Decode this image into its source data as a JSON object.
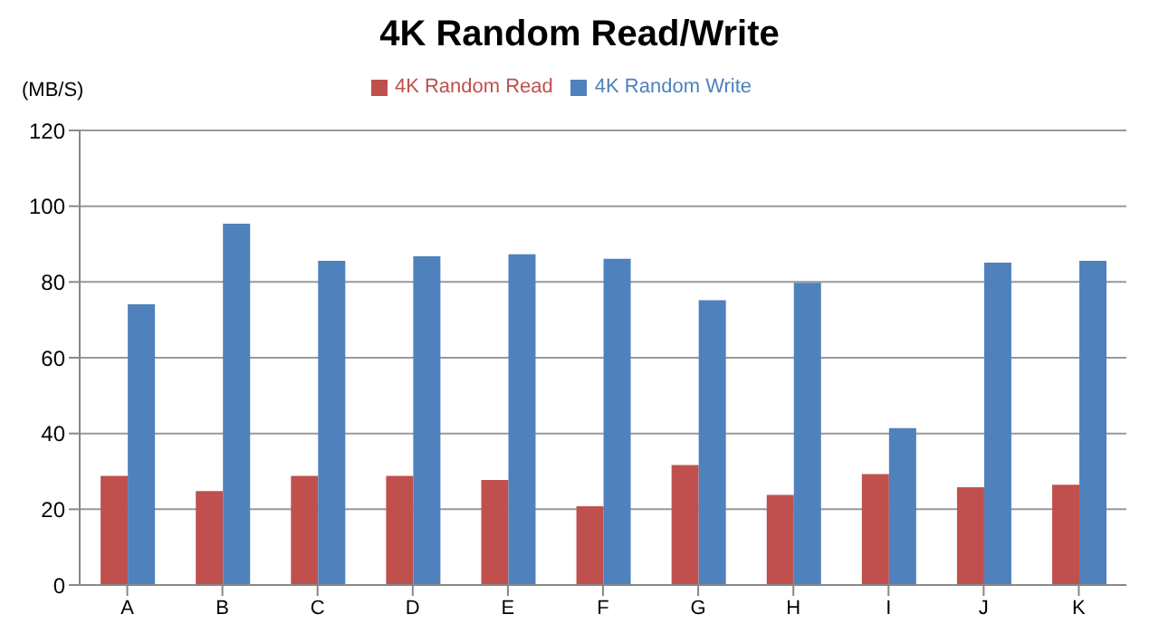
{
  "chart_data": {
    "type": "bar",
    "title": "4K Random Read/Write",
    "ylabel": "(MB/S)",
    "categories": [
      "A",
      "B",
      "C",
      "D",
      "E",
      "F",
      "G",
      "H",
      "I",
      "J",
      "K"
    ],
    "series": [
      {
        "name": "4K Random Read",
        "color": "#c0504d",
        "values": [
          28.8,
          24.8,
          28.8,
          28.8,
          27.7,
          20.8,
          31.7,
          23.8,
          29.3,
          25.8,
          26.5
        ]
      },
      {
        "name": "4K Random Write",
        "color": "#4f81bd",
        "values": [
          74.1,
          95.4,
          85.6,
          86.8,
          87.3,
          86.1,
          75.2,
          79.8,
          41.4,
          85.1,
          85.6
        ]
      }
    ],
    "ylim": [
      0,
      120
    ],
    "yticks": [
      0,
      20,
      40,
      60,
      80,
      100,
      120
    ],
    "grid": "y",
    "legend": "top"
  }
}
